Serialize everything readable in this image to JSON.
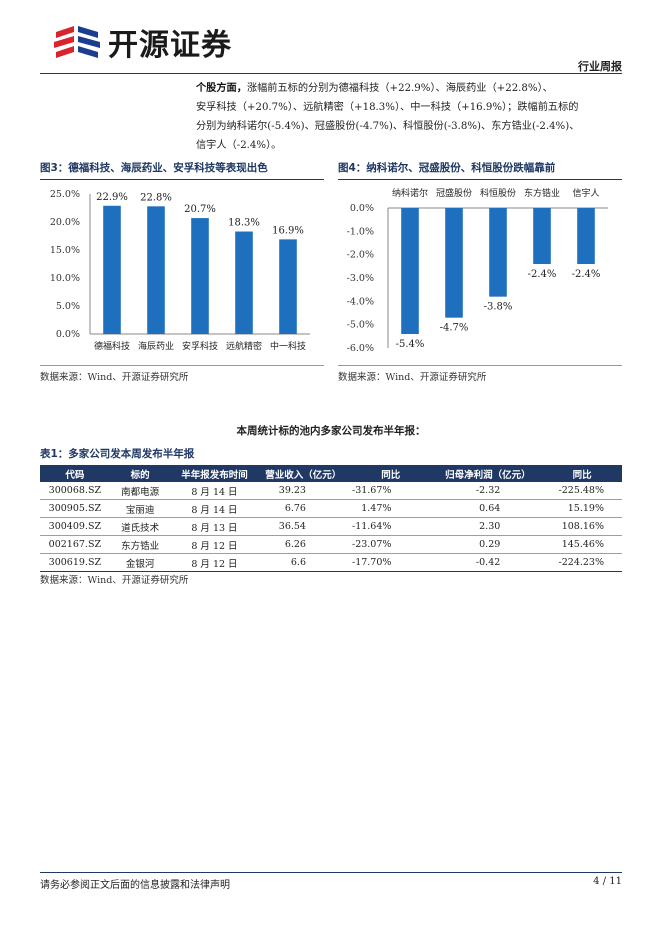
{
  "header": {
    "logo_text": "开源证券",
    "report_type": "行业周报"
  },
  "paragraph": {
    "lead": "个股方面，",
    "line1": "涨幅前五标的分别为德福科技（+22.9%）、海辰药业（+22.8%）、",
    "line2": "安孚科技（+20.7%）、远航精密（+18.3%）、中一科技（+16.9%）；跌幅前五标的",
    "line3": "分别为纳科诺尔(-5.4%)、冠盛股份(-4.7%)、科恒股份(-3.8%)、东方锆业(-2.4%)、",
    "line4": "信宇人（-2.4%）。"
  },
  "figure3": {
    "title": "图3：德福科技、海辰药业、安孚科技等表现出色",
    "source": "数据来源：Wind、开源证券研究所"
  },
  "figure4": {
    "title": "图4：纳科诺尔、冠盛股份、科恒股份跌幅靠前",
    "source": "数据来源：Wind、开源证券研究所"
  },
  "chart_data": [
    {
      "type": "bar",
      "title": "",
      "categories": [
        "德福科技",
        "海辰药业",
        "安孚科技",
        "远航精密",
        "中一科技"
      ],
      "values": [
        22.9,
        22.8,
        20.7,
        18.3,
        16.9
      ],
      "value_labels": [
        "22.9%",
        "22.8%",
        "20.7%",
        "18.3%",
        "16.9%"
      ],
      "yticks": [
        "0.0%",
        "5.0%",
        "10.0%",
        "15.0%",
        "20.0%",
        "25.0%"
      ],
      "ylim": [
        0,
        25
      ],
      "xlabel": "",
      "ylabel": "",
      "grid": false,
      "bar_color": "#1f6fbf"
    },
    {
      "type": "bar",
      "title": "",
      "categories": [
        "纳科诺尔",
        "冠盛股份",
        "科恒股份",
        "东方锆业",
        "信宇人"
      ],
      "values": [
        -5.4,
        -4.7,
        -3.8,
        -2.4,
        -2.4
      ],
      "value_labels": [
        "-5.4%",
        "-4.7%",
        "-3.8%",
        "-2.4%",
        "-2.4%"
      ],
      "yticks": [
        "0.0%",
        "-1.0%",
        "-2.0%",
        "-3.0%",
        "-4.0%",
        "-5.0%",
        "-6.0%"
      ],
      "ylim": [
        -6,
        0
      ],
      "xlabel": "",
      "ylabel": "",
      "grid": false,
      "category_labels_position": "top",
      "bar_color": "#1f6fbf"
    }
  ],
  "section": {
    "title": "本周统计标的池内多家公司发布半年报："
  },
  "table1": {
    "title": "表1：多家公司发本周发布半年报",
    "headers": [
      "代码",
      "标的",
      "半年报发布时间",
      "营业收入（亿元）",
      "同比",
      "归母净利润（亿元）",
      "同比"
    ],
    "rows": [
      [
        "300068.SZ",
        "南都电源",
        "8 月 14 日",
        "39.23",
        "-31.67%",
        "-2.32",
        "-225.48%"
      ],
      [
        "300905.SZ",
        "宝丽迪",
        "8 月 14 日",
        "6.76",
        "1.47%",
        "0.64",
        "15.19%"
      ],
      [
        "300409.SZ",
        "道氏技术",
        "8 月 13 日",
        "36.54",
        "-11.64%",
        "2.30",
        "108.16%"
      ],
      [
        "002167.SZ",
        "东方锆业",
        "8 月 12 日",
        "6.26",
        "-23.07%",
        "0.29",
        "145.46%"
      ],
      [
        "300619.SZ",
        "金银河",
        "8 月 12 日",
        "6.6",
        "-17.70%",
        "-0.42",
        "-224.23%"
      ]
    ],
    "source": "数据来源：Wind、开源证券研究所"
  },
  "footer": {
    "disclaimer": "请务必参阅正文后面的信息披露和法律声明",
    "page": "4 / 11"
  },
  "colors": {
    "brand_navy": "#1f3864",
    "logo_red": "#d9232d",
    "logo_blue": "#1a3d8f",
    "bar_blue": "#1f6fbf"
  }
}
